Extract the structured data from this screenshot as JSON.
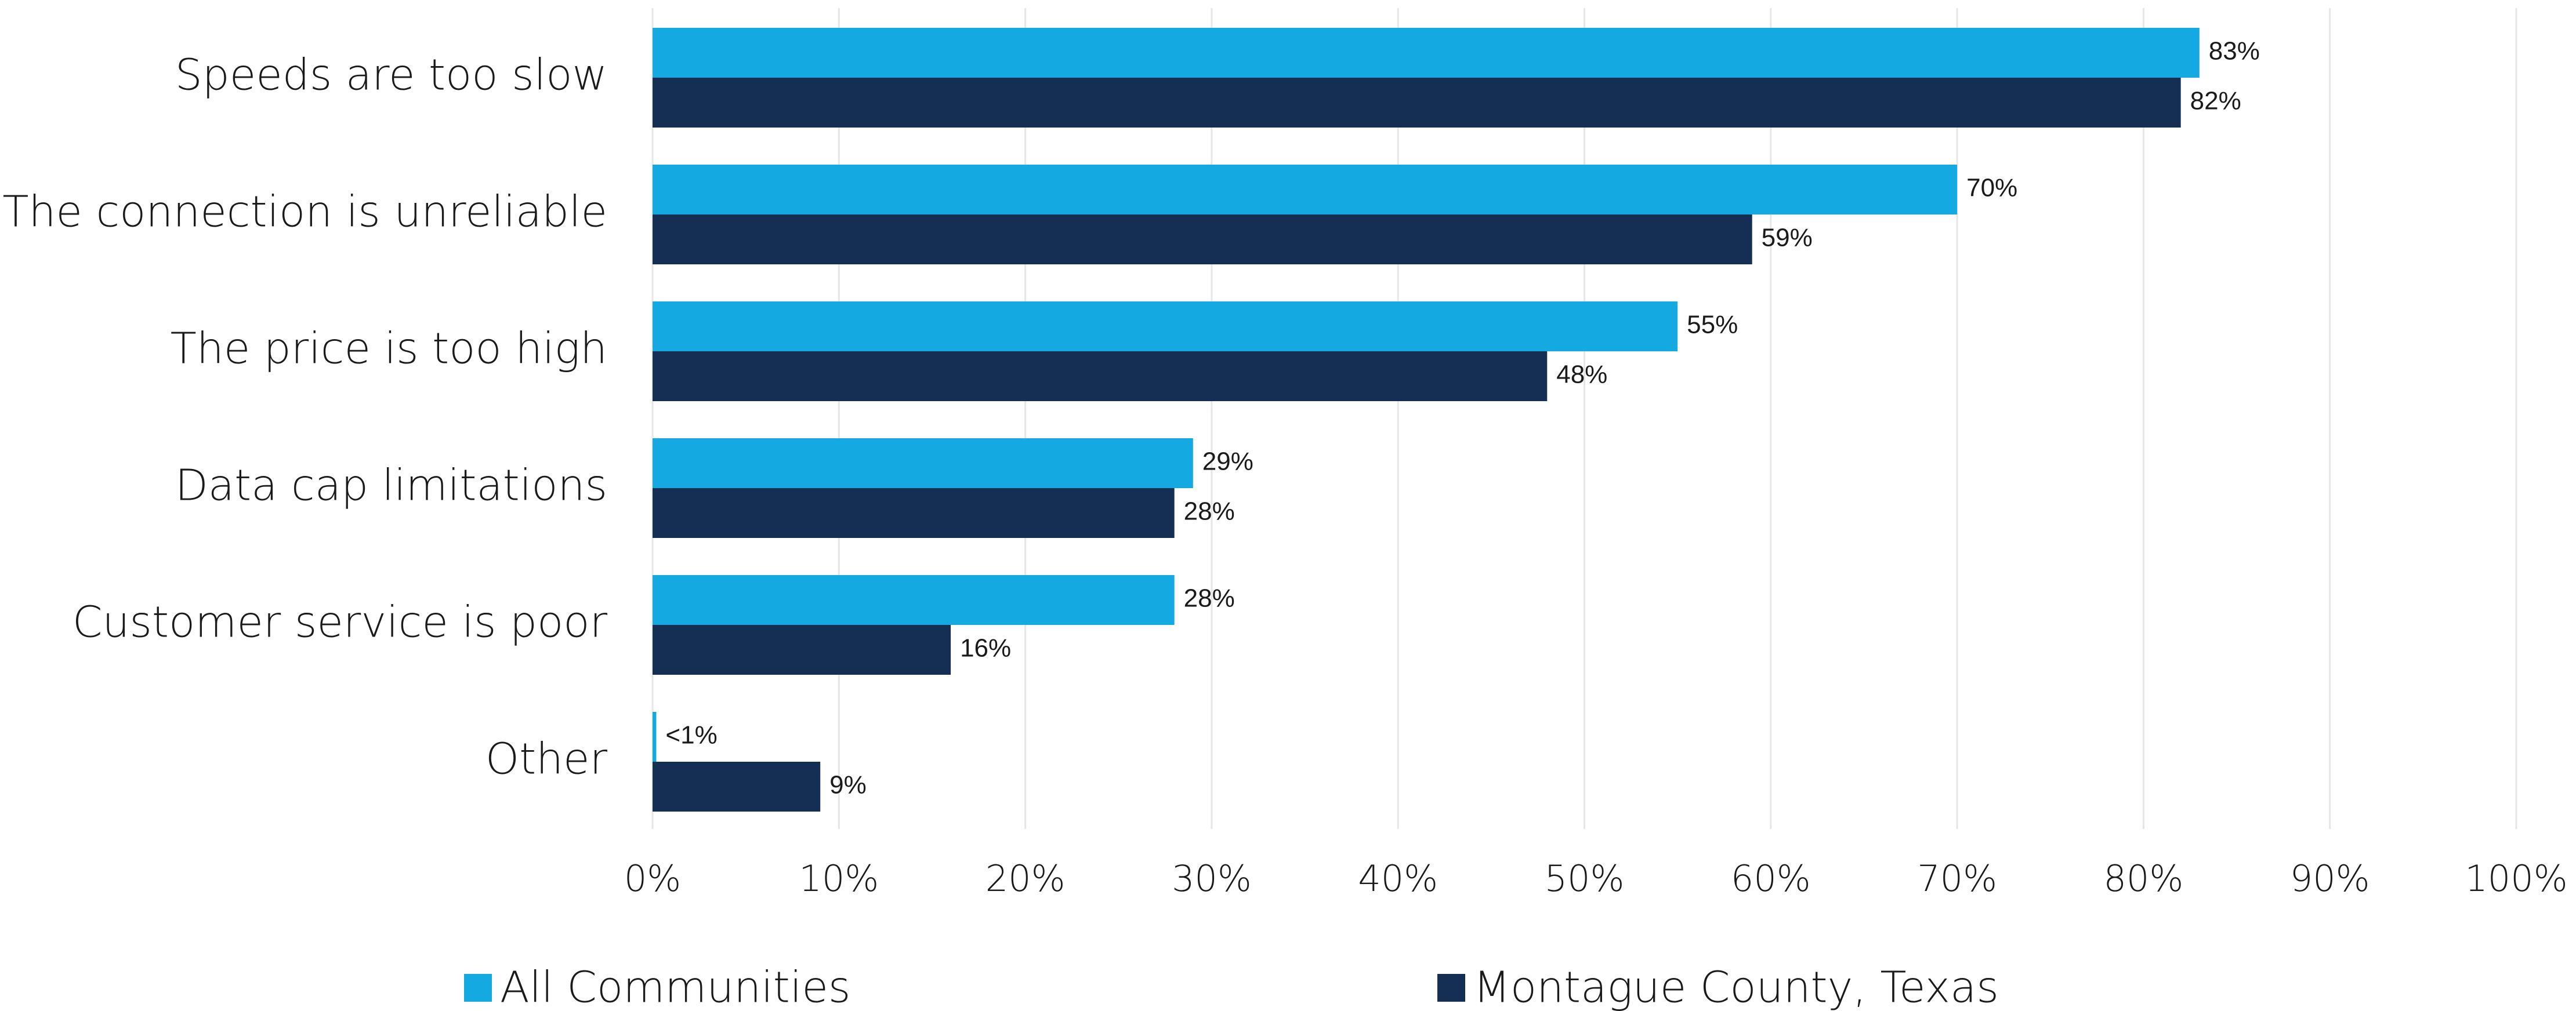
{
  "chart_data": {
    "type": "hbar",
    "categories": [
      "Speeds are too slow",
      "The connection is unreliable",
      "The price is too high",
      "Data cap limitations",
      "Customer service is poor",
      "Other"
    ],
    "series": [
      {
        "name": "All Communities",
        "color": "#14a9e1",
        "values": [
          83,
          70,
          55,
          29,
          28,
          0.2
        ],
        "value_labels": [
          "83%",
          "70%",
          "55%",
          "29%",
          "28%",
          "<1%"
        ]
      },
      {
        "name": "Montague County, Texas",
        "color": "#152e54",
        "values": [
          82,
          59,
          48,
          28,
          16,
          9
        ],
        "value_labels": [
          "82%",
          "59%",
          "48%",
          "28%",
          "16%",
          "9%"
        ]
      }
    ],
    "xlim": [
      0,
      100
    ],
    "xticks": [
      {
        "value": 0,
        "label": "0%"
      },
      {
        "value": 10,
        "label": "10%"
      },
      {
        "value": 20,
        "label": "20%"
      },
      {
        "value": 30,
        "label": "30%"
      },
      {
        "value": 40,
        "label": "40%"
      },
      {
        "value": 50,
        "label": "50%"
      },
      {
        "value": 60,
        "label": "60%"
      },
      {
        "value": 70,
        "label": "70%"
      },
      {
        "value": 80,
        "label": "80%"
      },
      {
        "value": 90,
        "label": "90%"
      },
      {
        "value": 100,
        "label": "100%"
      }
    ],
    "grid": true,
    "legend": "bottom"
  }
}
